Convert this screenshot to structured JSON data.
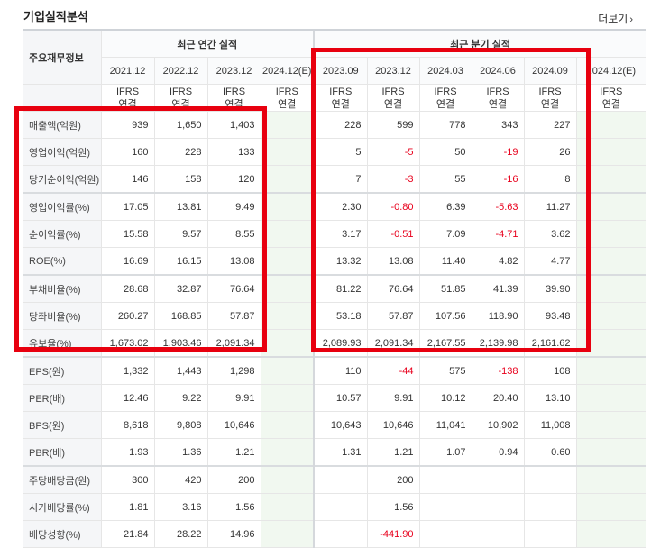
{
  "header": {
    "title": "기업실적분석",
    "more_label": "더보기"
  },
  "table": {
    "label_header": "주요재무정보",
    "annual_group": "최근 연간 실적",
    "quarter_group": "최근 분기 실적",
    "annual_periods": [
      "2021.12",
      "2022.12",
      "2023.12",
      "2024.12(E)"
    ],
    "quarter_periods": [
      "2023.09",
      "2023.12",
      "2024.03",
      "2024.06",
      "2024.09",
      "2024.12(E)"
    ],
    "ifrs_line1": "IFRS",
    "ifrs_line2": "연결",
    "rows": [
      {
        "label": "매출액(억원)",
        "annual": [
          "939",
          "1,650",
          "1,403",
          ""
        ],
        "quarter": [
          "228",
          "599",
          "778",
          "343",
          "227",
          ""
        ]
      },
      {
        "label": "영업이익(억원)",
        "annual": [
          "160",
          "228",
          "133",
          ""
        ],
        "quarter": [
          "5",
          "-5",
          "50",
          "-19",
          "26",
          ""
        ]
      },
      {
        "label": "당기순이익(억원)",
        "annual": [
          "146",
          "158",
          "120",
          ""
        ],
        "quarter": [
          "7",
          "-3",
          "55",
          "-16",
          "8",
          ""
        ]
      },
      {
        "label": "영업이익률(%)",
        "annual": [
          "17.05",
          "13.81",
          "9.49",
          ""
        ],
        "quarter": [
          "2.30",
          "-0.80",
          "6.39",
          "-5.63",
          "11.27",
          ""
        ]
      },
      {
        "label": "순이익률(%)",
        "annual": [
          "15.58",
          "9.57",
          "8.55",
          ""
        ],
        "quarter": [
          "3.17",
          "-0.51",
          "7.09",
          "-4.71",
          "3.62",
          ""
        ]
      },
      {
        "label": "ROE(%)",
        "annual": [
          "16.69",
          "16.15",
          "13.08",
          ""
        ],
        "quarter": [
          "13.32",
          "13.08",
          "11.40",
          "4.82",
          "4.77",
          ""
        ]
      },
      {
        "label": "부채비율(%)",
        "annual": [
          "28.68",
          "32.87",
          "76.64",
          ""
        ],
        "quarter": [
          "81.22",
          "76.64",
          "51.85",
          "41.39",
          "39.90",
          ""
        ]
      },
      {
        "label": "당좌비율(%)",
        "annual": [
          "260.27",
          "168.85",
          "57.87",
          ""
        ],
        "quarter": [
          "53.18",
          "57.87",
          "107.56",
          "118.90",
          "93.48",
          ""
        ]
      },
      {
        "label": "유보율(%)",
        "annual": [
          "1,673.02",
          "1,903.46",
          "2,091.34",
          ""
        ],
        "quarter": [
          "2,089.93",
          "2,091.34",
          "2,167.55",
          "2,139.98",
          "2,161.62",
          ""
        ]
      },
      {
        "label": "EPS(원)",
        "annual": [
          "1,332",
          "1,443",
          "1,298",
          ""
        ],
        "quarter": [
          "110",
          "-44",
          "575",
          "-138",
          "108",
          ""
        ]
      },
      {
        "label": "PER(배)",
        "annual": [
          "12.46",
          "9.22",
          "9.91",
          ""
        ],
        "quarter": [
          "10.57",
          "9.91",
          "10.12",
          "20.40",
          "13.10",
          ""
        ]
      },
      {
        "label": "BPS(원)",
        "annual": [
          "8,618",
          "9,808",
          "10,646",
          ""
        ],
        "quarter": [
          "10,643",
          "10,646",
          "11,041",
          "10,902",
          "11,008",
          ""
        ]
      },
      {
        "label": "PBR(배)",
        "annual": [
          "1.93",
          "1.36",
          "1.21",
          ""
        ],
        "quarter": [
          "1.31",
          "1.21",
          "1.07",
          "0.94",
          "0.60",
          ""
        ]
      },
      {
        "label": "주당배당금(원)",
        "annual": [
          "300",
          "420",
          "200",
          ""
        ],
        "quarter": [
          "",
          "200",
          "",
          "",
          "",
          ""
        ]
      },
      {
        "label": "시가배당률(%)",
        "annual": [
          "1.81",
          "3.16",
          "1.56",
          ""
        ],
        "quarter": [
          "",
          "1.56",
          "",
          "",
          "",
          ""
        ]
      },
      {
        "label": "배당성향(%)",
        "annual": [
          "21.84",
          "28.22",
          "14.96",
          ""
        ],
        "quarter": [
          "",
          "-441.90",
          "",
          "",
          "",
          ""
        ]
      }
    ]
  },
  "colors": {
    "negative": "#e8001c",
    "ifrs": "#e05a00",
    "highlight": "#e8000f",
    "estimate_bg": "#f1f8f0"
  }
}
